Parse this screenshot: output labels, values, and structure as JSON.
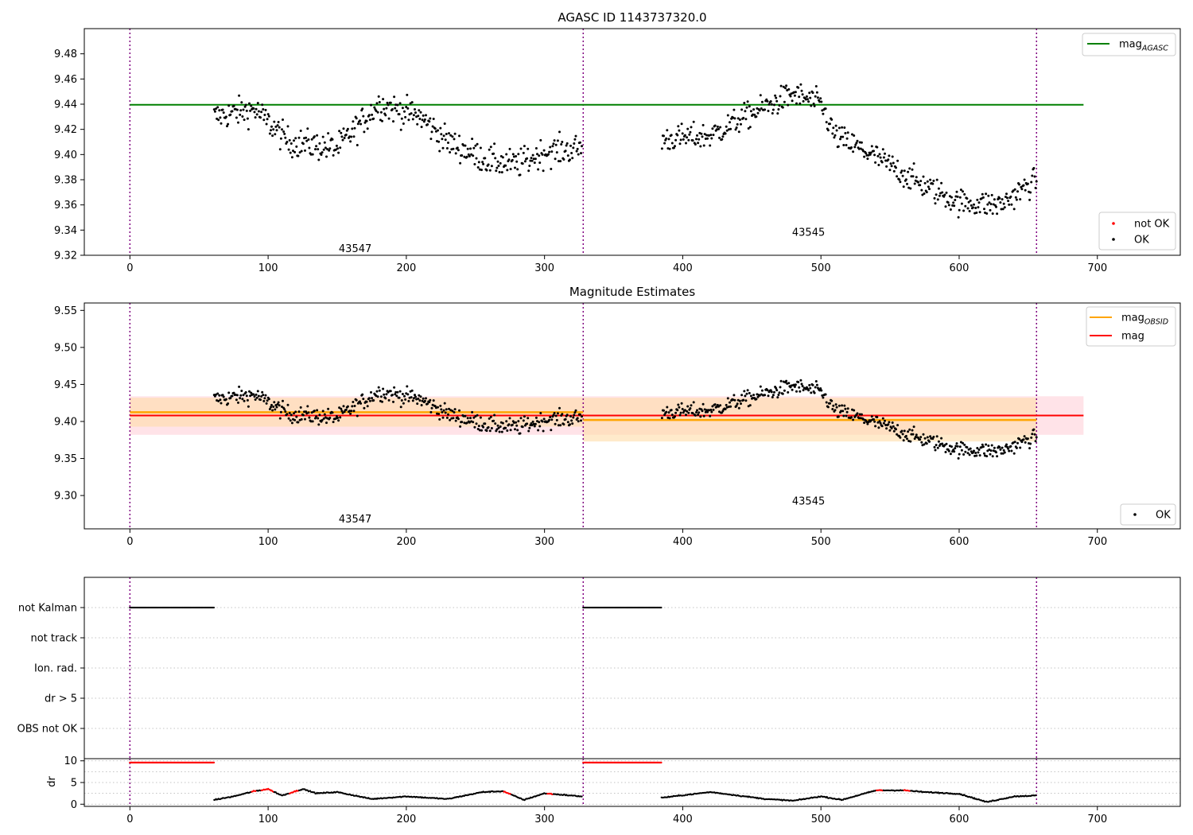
{
  "chart_data": [
    {
      "type": "scatter",
      "title": "AGASC ID 1143737320.0",
      "xlim": [
        -33,
        760
      ],
      "ylim": [
        9.32,
        9.5
      ],
      "xticks": [
        0,
        100,
        200,
        300,
        400,
        500,
        600,
        700
      ],
      "yticks": [
        9.32,
        9.34,
        9.36,
        9.38,
        9.4,
        9.42,
        9.44,
        9.46,
        9.48
      ],
      "obsid_boundaries": [
        0,
        328,
        656
      ],
      "obsid_labels": [
        {
          "text": "43547",
          "x": 163,
          "y": 9.325
        },
        {
          "text": "43545",
          "x": 491,
          "y": 9.338
        }
      ],
      "reference_lines": [
        {
          "name": "mag",
          "subscript": "AGASC",
          "value": 9.4395,
          "x_range": [
            0,
            690
          ],
          "color": "#008000"
        }
      ],
      "legends": [
        {
          "position": "upper-right",
          "entries": [
            {
              "name": "mag",
              "subscript": "AGASC",
              "kind": "line",
              "color": "#008000"
            }
          ]
        },
        {
          "position": "lower-right",
          "entries": [
            {
              "name": "not OK",
              "kind": "marker",
              "color": "#ff0000"
            },
            {
              "name": "OK",
              "kind": "marker",
              "color": "#000000"
            }
          ]
        }
      ],
      "segments": [
        {
          "x_range": [
            61,
            327
          ],
          "mean": 9.414,
          "noise": 0.011,
          "trend": [
            [
              61,
              9.43
            ],
            [
              90,
              9.436
            ],
            [
              115,
              9.41
            ],
            [
              150,
              9.405
            ],
            [
              180,
              9.44
            ],
            [
              210,
              9.43
            ],
            [
              230,
              9.41
            ],
            [
              260,
              9.395
            ],
            [
              280,
              9.392
            ],
            [
              300,
              9.402
            ],
            [
              327,
              9.405
            ]
          ]
        },
        {
          "x_range": [
            385,
            656
          ],
          "mean": 9.4,
          "noise": 0.01,
          "trend": [
            [
              385,
              9.412
            ],
            [
              420,
              9.415
            ],
            [
              445,
              9.43
            ],
            [
              480,
              9.448
            ],
            [
              500,
              9.44
            ],
            [
              510,
              9.415
            ],
            [
              540,
              9.398
            ],
            [
              570,
              9.378
            ],
            [
              600,
              9.362
            ],
            [
              630,
              9.36
            ],
            [
              656,
              9.38
            ]
          ]
        }
      ]
    },
    {
      "type": "scatter",
      "title": "Magnitude Estimates",
      "xlim": [
        -33,
        760
      ],
      "ylim": [
        9.255,
        9.56
      ],
      "xticks": [
        0,
        100,
        200,
        300,
        400,
        500,
        600,
        700
      ],
      "yticks": [
        9.3,
        9.35,
        9.4,
        9.45,
        9.5,
        9.55
      ],
      "obsid_boundaries": [
        0,
        328,
        656
      ],
      "obsid_labels": [
        {
          "text": "43547",
          "x": 163,
          "y": 9.268
        },
        {
          "text": "43545",
          "x": 491,
          "y": 9.292
        }
      ],
      "global_mag": {
        "name": "mag",
        "value": 9.408,
        "band": [
          9.382,
          9.434
        ],
        "x_range": [
          0,
          690
        ],
        "color": "#ff0000",
        "band_color": "#ffc0cb"
      },
      "obsid_mags": [
        {
          "x_range": [
            0,
            328
          ],
          "value": 9.4125,
          "band": [
            9.393,
            9.432
          ]
        },
        {
          "x_range": [
            328,
            656
          ],
          "value": 9.402,
          "band": [
            9.373,
            9.432
          ]
        }
      ],
      "obsid_mag_style": {
        "name": "mag",
        "subscript": "OBSID",
        "color": "#ffa500",
        "band_color": "#ffdca8"
      },
      "legends": [
        {
          "position": "upper-right",
          "entries": [
            {
              "name": "mag",
              "subscript": "OBSID",
              "kind": "line",
              "color": "#ffa500"
            },
            {
              "name": "mag",
              "kind": "line",
              "color": "#ff0000"
            }
          ]
        },
        {
          "position": "lower-right",
          "entries": [
            {
              "name": "OK",
              "kind": "marker",
              "color": "#000000"
            }
          ]
        }
      ]
    },
    {
      "type": "scatter",
      "title": "",
      "xlim": [
        -33,
        760
      ],
      "xticks": [
        0,
        100,
        200,
        300,
        400,
        500,
        600,
        700
      ],
      "flag_rows": [
        "not Kalman",
        "not track",
        "Ion. rad.",
        "dr > 5",
        "OBS not OK"
      ],
      "flag_points": [
        {
          "row": "not Kalman",
          "x_ranges": [
            [
              0,
              61
            ],
            [
              328,
              385
            ]
          ],
          "color": "#000000"
        }
      ],
      "obsid_boundaries": [
        0,
        328,
        656
      ]
    },
    {
      "type": "scatter",
      "ylabel": "dr",
      "xlim": [
        -33,
        760
      ],
      "ylim": [
        -0.5,
        10.5
      ],
      "xticks": [
        0,
        100,
        200,
        300,
        400,
        500,
        600,
        700
      ],
      "yticks": [
        0,
        5,
        10
      ],
      "obsid_boundaries": [
        0,
        328,
        656
      ],
      "clipped_high": [
        {
          "x_range": [
            0,
            61
          ],
          "value": 9.6
        },
        {
          "x_range": [
            328,
            385
          ],
          "value": 9.6
        }
      ],
      "dr_trend": [
        [
          61,
          1.0
        ],
        [
          75,
          1.8
        ],
        [
          90,
          3.0
        ],
        [
          100,
          3.5
        ],
        [
          110,
          2.0
        ],
        [
          125,
          3.5
        ],
        [
          135,
          2.5
        ],
        [
          150,
          2.8
        ],
        [
          175,
          1.2
        ],
        [
          200,
          1.8
        ],
        [
          230,
          1.2
        ],
        [
          255,
          2.8
        ],
        [
          270,
          3.0
        ],
        [
          285,
          1.0
        ],
        [
          300,
          2.5
        ],
        [
          327,
          1.8
        ],
        [
          385,
          1.5
        ],
        [
          420,
          2.8
        ],
        [
          460,
          1.2
        ],
        [
          480,
          0.8
        ],
        [
          500,
          1.8
        ],
        [
          515,
          1.0
        ],
        [
          540,
          3.2
        ],
        [
          560,
          3.2
        ],
        [
          575,
          2.8
        ],
        [
          600,
          2.4
        ],
        [
          620,
          0.5
        ],
        [
          640,
          1.8
        ],
        [
          656,
          2.0
        ]
      ],
      "not_ok_x": [
        [
          88,
          92
        ],
        [
          95,
          104
        ],
        [
          115,
          122
        ],
        [
          270,
          276
        ],
        [
          302,
          306
        ],
        [
          540,
          545
        ],
        [
          560,
          565
        ]
      ]
    }
  ]
}
